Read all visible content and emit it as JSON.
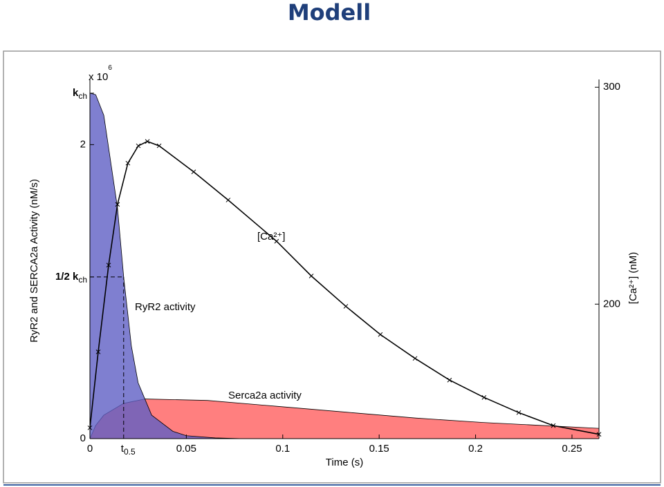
{
  "title": "Modell",
  "chart_data": {
    "type": "area",
    "xlabel": "Time (s)",
    "ylabel": "RyR2 and SERCA2a Activity (nM/s)",
    "y2label": "[Ca²⁺] (nM)",
    "multiplier": "x 10",
    "multiplier_exp": "6",
    "xlim": [
      0,
      0.264
    ],
    "xticks": [
      0,
      0.05,
      0.1,
      0.15,
      0.2,
      0.25
    ],
    "ylim": [
      0,
      2.42
    ],
    "yticks": [
      0,
      2
    ],
    "y2lim": [
      138,
      302
    ],
    "y2ticks": [
      200,
      300
    ],
    "y_markers": [
      {
        "value": 2.35,
        "text": "k",
        "sub": "ch"
      },
      {
        "value": 1.1,
        "text": "1/2 k",
        "sub": "ch"
      }
    ],
    "x_markers": [
      {
        "value": 0.0175,
        "text": "t",
        "sub": "0.5"
      }
    ],
    "series": [
      {
        "name": "Serca2a activity",
        "type": "area",
        "color": "#ff7f7f",
        "x": [
          0,
          0.003,
          0.0072,
          0.0175,
          0.0287,
          0.061,
          0.097,
          0.133,
          0.169,
          0.204,
          0.264
        ],
        "values": [
          0,
          0.09,
          0.16,
          0.24,
          0.27,
          0.26,
          0.22,
          0.18,
          0.14,
          0.11,
          0.07
        ]
      },
      {
        "name": "RyR2 activity",
        "type": "area",
        "color": "#5f5fc4",
        "x": [
          0,
          0.003,
          0.0072,
          0.0143,
          0.0175,
          0.0215,
          0.025,
          0.032,
          0.043,
          0.05,
          0.065,
          0.079
        ],
        "values": [
          2.35,
          2.34,
          2.2,
          1.57,
          1.1,
          0.63,
          0.38,
          0.16,
          0.05,
          0.02,
          0.005,
          0
        ]
      },
      {
        "name": "[Ca²⁺]",
        "type": "line",
        "axis": "y2",
        "color": "#000000",
        "x": [
          0,
          0.0043,
          0.0097,
          0.0143,
          0.0197,
          0.0251,
          0.0298,
          0.0359,
          0.0538,
          0.0717,
          0.0968,
          0.1148,
          0.1327,
          0.1506,
          0.1686,
          0.1865,
          0.2044,
          0.2224,
          0.2403,
          0.264
        ],
        "values": [
          143,
          178,
          218,
          246,
          265,
          273,
          275,
          273,
          261,
          248,
          229,
          213,
          199,
          186,
          175,
          165,
          157,
          150,
          144,
          140
        ]
      }
    ]
  }
}
